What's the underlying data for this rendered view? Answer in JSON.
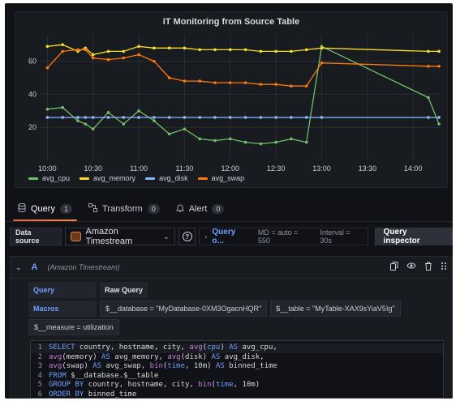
{
  "panel": {
    "title": "IT Monitoring from Source Table"
  },
  "chart_data": {
    "type": "line",
    "title": "IT Monitoring from Source Table",
    "x_tick_labels": [
      "10:00",
      "10:30",
      "11:00",
      "11:30",
      "12:00",
      "12:30",
      "13:00",
      "13:30",
      "14:00"
    ],
    "y_tick_labels": [
      "20",
      "40",
      "60"
    ],
    "ylim": [
      0,
      76
    ],
    "xlim_minutes": [
      -5,
      258
    ],
    "grid": true,
    "legend_position": "bottom-left",
    "x_minutes": [
      0,
      10,
      20,
      25,
      30,
      40,
      50,
      60,
      70,
      80,
      90,
      100,
      110,
      120,
      130,
      140,
      150,
      160,
      170,
      180,
      250,
      257
    ],
    "series": [
      {
        "name": "avg_cpu",
        "color": "#73bf69",
        "x": [
          0,
          10,
          20,
          25,
          30,
          40,
          50,
          60,
          70,
          80,
          90,
          100,
          110,
          120,
          130,
          140,
          150,
          160,
          170,
          180,
          250,
          257
        ],
        "values": [
          31,
          32,
          24,
          22,
          19,
          29,
          22,
          30,
          24,
          16,
          19,
          13,
          12,
          13,
          11,
          10,
          11,
          13,
          11,
          69,
          38,
          22
        ]
      },
      {
        "name": "avg_memory",
        "color": "#fade2a",
        "x": [
          0,
          10,
          20,
          25,
          30,
          40,
          50,
          60,
          70,
          80,
          90,
          100,
          110,
          120,
          130,
          140,
          150,
          160,
          170,
          180,
          250,
          257
        ],
        "values": [
          69,
          70,
          66,
          68,
          64,
          66,
          66,
          69,
          68,
          68,
          68,
          67,
          67,
          67,
          67,
          66,
          66,
          66,
          67,
          68,
          66,
          66
        ]
      },
      {
        "name": "avg_disk",
        "color": "#8ab8ff",
        "x": [
          0,
          10,
          20,
          25,
          30,
          40,
          50,
          60,
          70,
          80,
          90,
          100,
          110,
          120,
          130,
          140,
          150,
          160,
          170,
          180,
          250,
          257
        ],
        "values": [
          26,
          26,
          26,
          26,
          26,
          26,
          26,
          26,
          26,
          26,
          26,
          26,
          26,
          26,
          26,
          26,
          26,
          26,
          26,
          26,
          26,
          26
        ]
      },
      {
        "name": "avg_swap",
        "color": "#ff780a",
        "x": [
          0,
          10,
          20,
          25,
          30,
          40,
          50,
          60,
          70,
          80,
          90,
          100,
          110,
          120,
          130,
          140,
          150,
          160,
          170,
          180,
          250,
          257
        ],
        "values": [
          56,
          66,
          67,
          67,
          62,
          61,
          62,
          64,
          60,
          50,
          48,
          48,
          47,
          47,
          47,
          46,
          46,
          45,
          45,
          59,
          57,
          57
        ]
      }
    ]
  },
  "tabs": [
    {
      "label": "Query",
      "count": "1",
      "icon": "database-icon"
    },
    {
      "label": "Transform",
      "count": "0",
      "icon": "transform-icon"
    },
    {
      "label": "Alert",
      "count": "0",
      "icon": "bell-icon"
    }
  ],
  "toolbar": {
    "datasource_label": "Data source",
    "datasource_value": "Amazon Timestream",
    "query_options_link": "Query o...",
    "md": "MD = auto = 550",
    "interval": "Interval = 30s",
    "query_inspector": "Query inspector"
  },
  "query_row": {
    "ref": "A",
    "datasource": "(Amazon Timestream)"
  },
  "editor": {
    "query_btn": "Query",
    "raw_query_btn": "Raw Query",
    "macros_label": "Macros",
    "macro_database": "$__database = \"MyDatabase-0XM3OgacnHQR\"",
    "macro_table": "$__table = \"MyTable-XAX9sYiaV5Ig\"",
    "macro_measure": "$__measure = utilization",
    "code": [
      {
        "n": "1",
        "tokens": [
          [
            "kw",
            "SELECT"
          ],
          [
            "src",
            " country, hostname, city, "
          ],
          [
            "fn",
            "avg"
          ],
          [
            "src",
            "("
          ],
          [
            "kw",
            "cpu"
          ],
          [
            "src",
            ") "
          ],
          [
            "kw",
            "AS"
          ],
          [
            "src",
            " avg_cpu,"
          ]
        ]
      },
      {
        "n": "2",
        "tokens": [
          [
            "fn",
            "avg"
          ],
          [
            "src",
            "(memory) "
          ],
          [
            "kw",
            "AS"
          ],
          [
            "src",
            " avg_memory, "
          ],
          [
            "fn",
            "avg"
          ],
          [
            "src",
            "(disk) "
          ],
          [
            "kw",
            "AS"
          ],
          [
            "src",
            " avg_disk,"
          ]
        ]
      },
      {
        "n": "3",
        "tokens": [
          [
            "fn",
            "avg"
          ],
          [
            "src",
            "(swap) "
          ],
          [
            "kw",
            "AS"
          ],
          [
            "src",
            " avg_swap, "
          ],
          [
            "fn",
            "bin"
          ],
          [
            "src",
            "("
          ],
          [
            "kw",
            "time"
          ],
          [
            "src",
            ", 10m) "
          ],
          [
            "kw",
            "AS"
          ],
          [
            "src",
            " binned_time"
          ]
        ]
      },
      {
        "n": "4",
        "tokens": [
          [
            "kw",
            "FROM"
          ],
          [
            "src",
            " $__database.$__table"
          ]
        ]
      },
      {
        "n": "5",
        "tokens": [
          [
            "kw",
            "GROUP BY"
          ],
          [
            "src",
            " country, hostname, city, "
          ],
          [
            "fn",
            "bin"
          ],
          [
            "src",
            "("
          ],
          [
            "kw",
            "time"
          ],
          [
            "src",
            ", 10m)"
          ]
        ]
      },
      {
        "n": "6",
        "tokens": [
          [
            "kw",
            "ORDER BY"
          ],
          [
            "src",
            " binned_time"
          ]
        ]
      }
    ]
  }
}
